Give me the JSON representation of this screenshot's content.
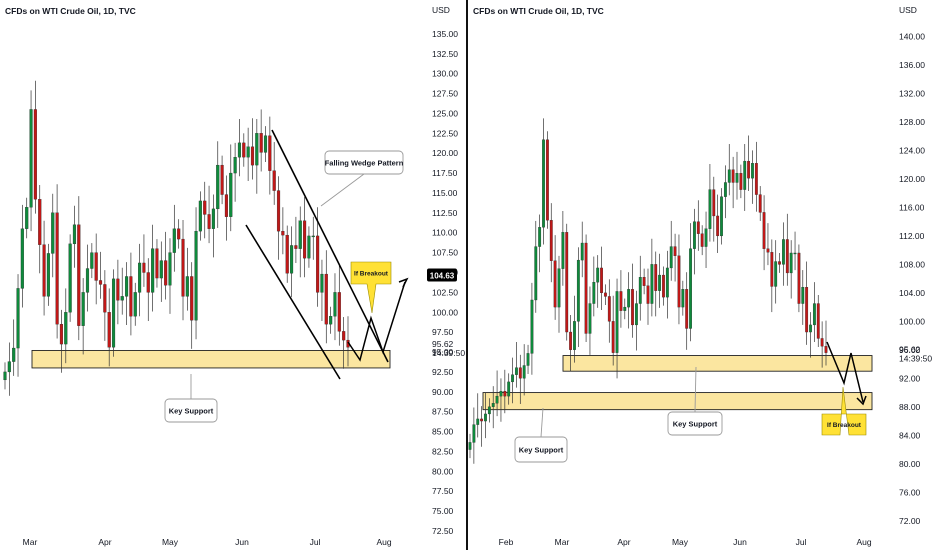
{
  "chart_data": [
    {
      "type": "candlestick",
      "title": "CFDs on WTI Crude Oil, 1D, TVC",
      "currency": "USD",
      "y_ticks": [
        "135.00",
        "132.50",
        "130.00",
        "127.50",
        "125.00",
        "122.50",
        "120.00",
        "117.50",
        "115.00",
        "112.50",
        "110.00",
        "107.50",
        "105.00",
        "102.50",
        "100.00",
        "97.50",
        "95.00",
        "92.50",
        "90.00",
        "87.50",
        "85.00",
        "82.50",
        "80.00",
        "77.50",
        "75.00",
        "72.50"
      ],
      "x_labels": [
        "Mar",
        "Apr",
        "May",
        "Jun",
        "Jul",
        "Aug"
      ],
      "ylim": [
        72.5,
        137.5
      ],
      "last_price": "95.62",
      "countdown": "14:39:50",
      "price_tag": "104.63",
      "annotations": {
        "pattern": "Falling Wedge Pattern",
        "support": "Key Support",
        "breakout": "If Breakout"
      },
      "support_zone": [
        93.0,
        95.2
      ],
      "closes": [
        92.5,
        93.8,
        95.5,
        103.0,
        110.5,
        113.2,
        125.5,
        114.2,
        108.5,
        102.0,
        107.4,
        112.5,
        98.5,
        96.0,
        100.0,
        108.6,
        111.0,
        98.3,
        102.5,
        105.5,
        107.5,
        104.0,
        103.5,
        100.0,
        95.6,
        104.2,
        101.5,
        102.0,
        104.5,
        99.5,
        102.5,
        106.2,
        105.0,
        102.5,
        108.0,
        104.3,
        106.5,
        103.4,
        107.5,
        110.5,
        109.2,
        102.0,
        104.5,
        99.0,
        110.2,
        114.0,
        112.3,
        110.5,
        113.0,
        118.5,
        114.8,
        112.0,
        117.5,
        119.5,
        121.3,
        119.5,
        120.8,
        118.5,
        122.5,
        120.1,
        122.2,
        117.8,
        115.3,
        110.2,
        109.7,
        104.9,
        108.4,
        108.0,
        111.5,
        106.8,
        109.6,
        109.6,
        102.5,
        104.8,
        98.5,
        99.5,
        102.5,
        97.6,
        96.5,
        95.6
      ]
    },
    {
      "type": "candlestick",
      "title": "CFDs on WTI Crude Oil, 1D, TVC",
      "currency": "USD",
      "y_ticks": [
        "140.00",
        "136.00",
        "132.00",
        "128.00",
        "124.00",
        "120.00",
        "116.00",
        "112.00",
        "108.00",
        "104.00",
        "100.00",
        "96.00",
        "92.00",
        "88.00",
        "84.00",
        "80.00",
        "76.00",
        "72.00"
      ],
      "x_labels": [
        "Feb",
        "Mar",
        "Apr",
        "May",
        "Jun",
        "Jul",
        "Aug"
      ],
      "ylim": [
        70,
        144
      ],
      "last_price": "95.62",
      "countdown": "14:39:50",
      "annotations": {
        "upper_support": "Key Support",
        "lower_support": "Key Support",
        "breakout": "If Breakout"
      },
      "support_zones": [
        [
          93.0,
          95.2
        ],
        [
          87.6,
          90.0
        ]
      ],
      "closes": [
        83.0,
        85.5,
        86.3,
        86.0,
        87.0,
        88.0,
        88.5,
        89.5,
        90.2,
        89.5,
        91.5,
        92.5,
        93.5,
        92.0,
        93.8,
        95.5,
        103.0,
        110.5,
        113.2,
        125.5,
        114.2,
        108.5,
        102.0,
        107.4,
        112.5,
        98.5,
        96.0,
        100.0,
        108.6,
        111.0,
        98.3,
        102.5,
        105.5,
        107.5,
        104.0,
        103.5,
        100.0,
        95.6,
        104.2,
        101.5,
        102.0,
        104.5,
        99.5,
        102.5,
        106.2,
        105.0,
        102.5,
        108.0,
        104.3,
        106.5,
        103.4,
        107.5,
        110.5,
        109.2,
        102.0,
        104.5,
        99.0,
        110.2,
        114.0,
        112.3,
        110.5,
        113.0,
        118.5,
        114.8,
        112.0,
        117.5,
        119.5,
        121.3,
        119.5,
        120.8,
        118.5,
        122.5,
        120.1,
        122.2,
        117.8,
        115.3,
        110.2,
        109.7,
        104.9,
        108.4,
        108.0,
        111.5,
        106.8,
        109.6,
        109.6,
        102.5,
        104.8,
        98.5,
        99.5,
        102.5,
        97.6,
        96.5,
        95.6
      ]
    }
  ]
}
